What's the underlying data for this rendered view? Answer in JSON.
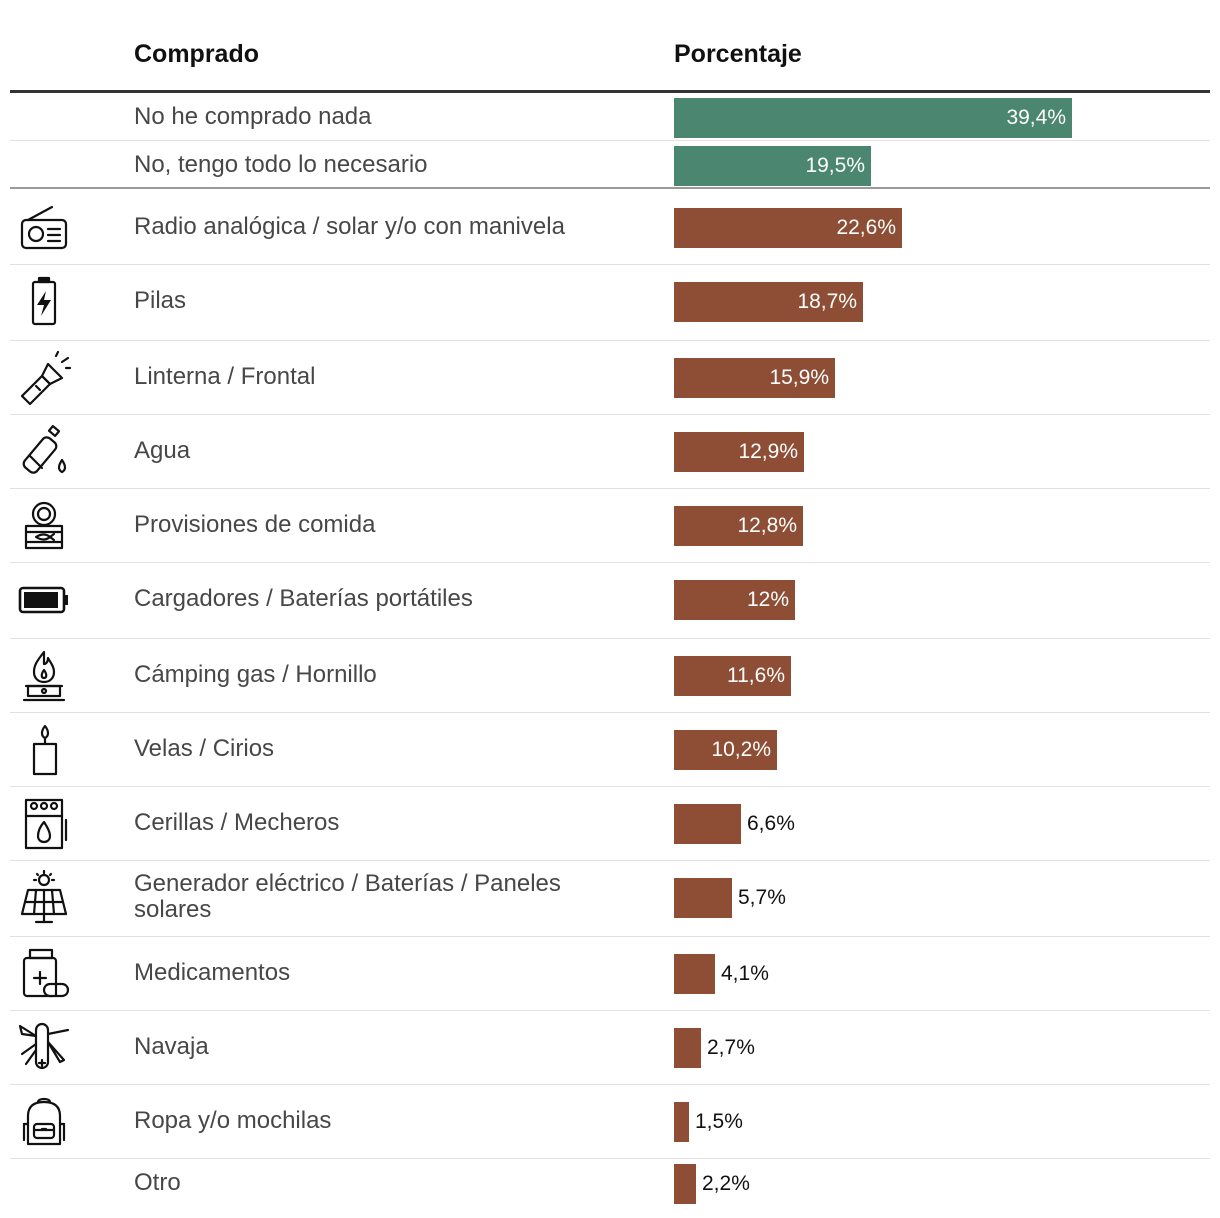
{
  "header": {
    "col_item": "Comprado",
    "col_value": "Porcentaje"
  },
  "colors": {
    "group_none": "#4b8670",
    "group_items": "#8e4e36"
  },
  "chart_data": {
    "type": "bar",
    "orientation": "horizontal",
    "title": "",
    "xlabel": "Porcentaje",
    "ylabel": "Comprado",
    "xlim": [
      0,
      39.4
    ],
    "categories": [
      "No he comprado nada",
      "No, tengo todo lo necesario",
      "Radio analógica / solar y/o con manivela",
      "Pilas",
      "Linterna / Frontal",
      "Agua",
      "Provisiones de comida",
      "Cargadores / Baterías portátiles",
      "Cámping gas / Hornillo",
      "Velas / Cirios",
      "Cerillas / Mecheros",
      "Generador eléctrico / Baterías / Paneles solares",
      "Medicamentos",
      "Navaja",
      "Ropa y/o mochilas",
      "Otro"
    ],
    "values": [
      39.4,
      19.5,
      22.6,
      18.7,
      15.9,
      12.9,
      12.8,
      12,
      11.6,
      10.2,
      6.6,
      5.7,
      4.1,
      2.7,
      1.5,
      2.2
    ],
    "value_labels": [
      "39,4%",
      "19,5%",
      "22,6%",
      "18,7%",
      "15,9%",
      "12,9%",
      "12,8%",
      "12%",
      "11,6%",
      "10,2%",
      "6,6%",
      "5,7%",
      "4,1%",
      "2,7%",
      "1,5%",
      "2,2%"
    ],
    "groups": [
      "none",
      "none",
      "items",
      "items",
      "items",
      "items",
      "items",
      "items",
      "items",
      "items",
      "items",
      "items",
      "items",
      "items",
      "items",
      "items"
    ],
    "icons": [
      "",
      "",
      "radio-icon",
      "battery-cell-icon",
      "flashlight-icon",
      "water-bottle-icon",
      "canned-food-icon",
      "powerbank-icon",
      "camping-stove-icon",
      "candle-icon",
      "matchbox-icon",
      "solar-panel-icon",
      "medicine-icon",
      "pocket-knife-icon",
      "backpack-icon",
      ""
    ]
  }
}
